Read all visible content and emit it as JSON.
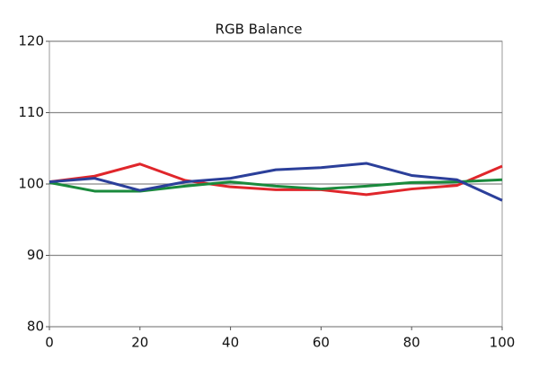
{
  "chart_data": {
    "type": "line",
    "title": "RGB Balance",
    "x": [
      0,
      10,
      20,
      30,
      40,
      50,
      60,
      70,
      80,
      90,
      100
    ],
    "series": [
      {
        "name": "Red",
        "color": "#e0262b",
        "values": [
          100.3,
          101.1,
          102.8,
          100.5,
          99.6,
          99.2,
          99.2,
          98.5,
          99.3,
          99.8,
          102.5
        ]
      },
      {
        "name": "Green",
        "color": "#1a8a3c",
        "values": [
          100.2,
          99.0,
          99.0,
          99.7,
          100.3,
          99.7,
          99.3,
          99.7,
          100.2,
          100.3,
          100.6
        ]
      },
      {
        "name": "Blue",
        "color": "#2b3f9a",
        "values": [
          100.3,
          100.8,
          99.1,
          100.3,
          100.8,
          102.0,
          102.3,
          102.9,
          101.2,
          100.6,
          97.7
        ]
      }
    ],
    "xlim": [
      0,
      100
    ],
    "xticks": [
      0,
      20,
      40,
      60,
      80,
      100
    ],
    "ylim": [
      80,
      120
    ],
    "yticks": [
      80,
      90,
      100,
      110,
      120
    ],
    "grid": true
  }
}
